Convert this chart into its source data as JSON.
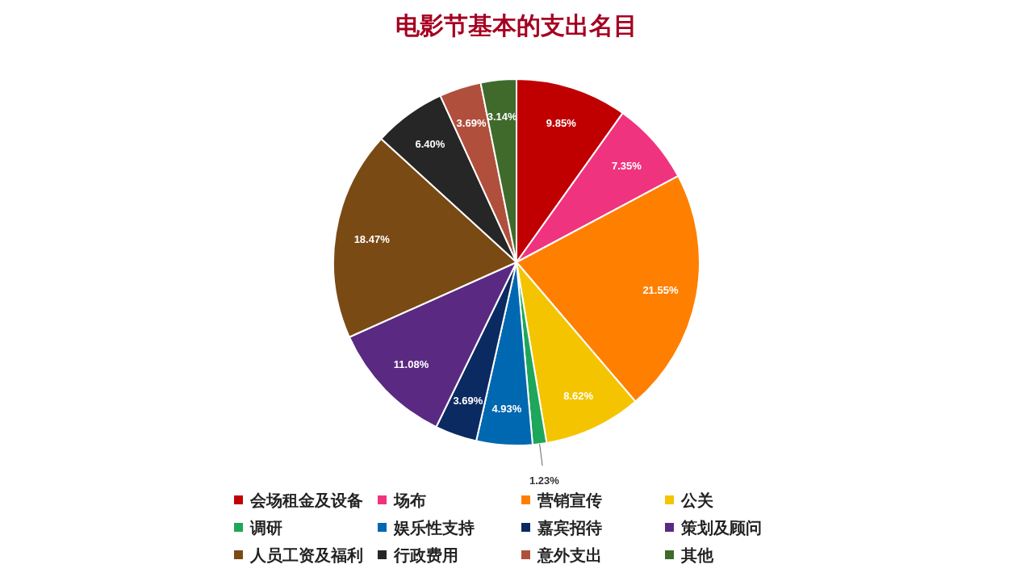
{
  "chart_data": {
    "type": "pie",
    "title": "电影节基本的支出名目",
    "categories": [
      "会场租金及设备",
      "场布",
      "营销宣传",
      "公关",
      "调研",
      "娱乐性支持",
      "嘉宾招待",
      "策划及顾问",
      "人员工资及福利",
      "行政费用",
      "意外支出",
      "其他"
    ],
    "values": [
      9.85,
      7.35,
      21.55,
      8.62,
      1.23,
      4.93,
      3.69,
      11.08,
      18.47,
      6.4,
      3.69,
      3.14
    ],
    "value_labels": [
      "9.85%",
      "7.35%",
      "21.55%",
      "8.62%",
      "1.23%",
      "4.93%",
      "3.69%",
      "11.08%",
      "18.47%",
      "6.40%",
      "3.69%",
      "3.14%"
    ],
    "colors": [
      "#c00000",
      "#f0337f",
      "#ff7f00",
      "#f5c400",
      "#1ea65a",
      "#0068b0",
      "#0c2a62",
      "#5a2a82",
      "#7a4a14",
      "#262626",
      "#b0503c",
      "#3f6a2c"
    ],
    "legend": "bottom"
  }
}
